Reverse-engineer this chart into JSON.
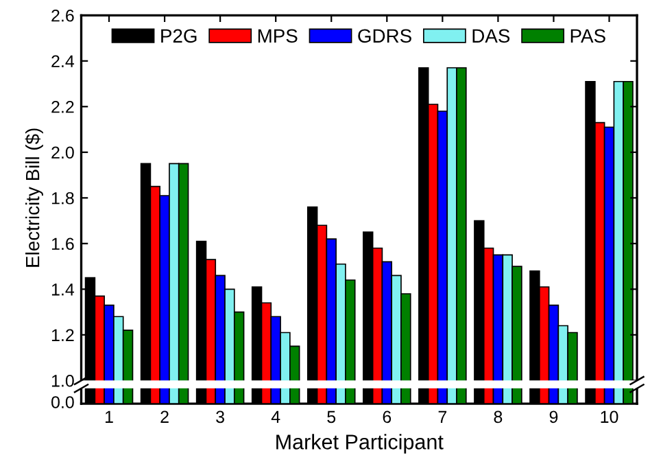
{
  "chart_data": {
    "type": "bar",
    "xlabel": "Market Participant",
    "ylabel": "Electricity Bill ($)",
    "categories": [
      "1",
      "2",
      "3",
      "4",
      "5",
      "6",
      "7",
      "8",
      "9",
      "10"
    ],
    "series": [
      {
        "name": "P2G",
        "color": "#000000",
        "values": [
          1.45,
          1.95,
          1.61,
          1.41,
          1.76,
          1.65,
          2.37,
          1.7,
          1.48,
          2.31
        ]
      },
      {
        "name": "MPS",
        "color": "#ff0000",
        "values": [
          1.37,
          1.85,
          1.53,
          1.34,
          1.68,
          1.58,
          2.21,
          1.58,
          1.41,
          2.13
        ]
      },
      {
        "name": "GDRS",
        "color": "#0000ff",
        "values": [
          1.33,
          1.81,
          1.46,
          1.28,
          1.62,
          1.52,
          2.18,
          1.55,
          1.33,
          2.11
        ]
      },
      {
        "name": "DAS",
        "color": "#80f0f0",
        "values": [
          1.28,
          1.95,
          1.4,
          1.21,
          1.51,
          1.46,
          2.37,
          1.55,
          1.24,
          2.31
        ]
      },
      {
        "name": "PAS",
        "color": "#008000",
        "values": [
          1.22,
          1.95,
          1.3,
          1.15,
          1.44,
          1.38,
          2.37,
          1.5,
          1.21,
          2.31
        ]
      }
    ],
    "ylim": [
      1.0,
      2.6
    ],
    "yticks": [
      {
        "value": 1.0,
        "label": "1.0"
      },
      {
        "value": 1.2,
        "label": "1.2"
      },
      {
        "value": 1.4,
        "label": "1.4"
      },
      {
        "value": 1.6,
        "label": "1.6"
      },
      {
        "value": 1.8,
        "label": "1.8"
      },
      {
        "value": 2.0,
        "label": "2.0"
      },
      {
        "value": 2.2,
        "label": "2.2"
      },
      {
        "value": 2.4,
        "label": "2.4"
      },
      {
        "value": 2.6,
        "label": "2.6"
      }
    ],
    "annotations": [
      "0.0"
    ],
    "legend": "top",
    "grid": false
  }
}
